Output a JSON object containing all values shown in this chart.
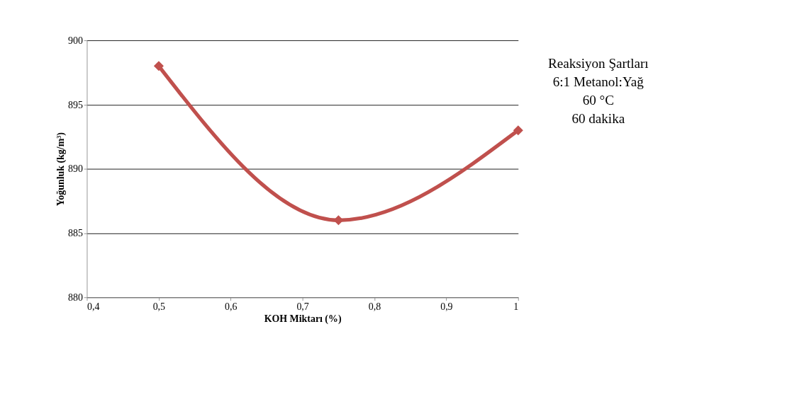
{
  "chart_data": {
    "type": "line",
    "xlabel": "KOH Miktarı (%)",
    "ylabel": "Yoğunluk (kg/m³)",
    "x": [
      0.5,
      0.75,
      1
    ],
    "series": [
      {
        "color": "#c0504d",
        "values": [
          898,
          886,
          893
        ]
      }
    ],
    "xlim": [
      0.4,
      1
    ],
    "xticks": [
      {
        "value": 0.4,
        "label": "0,4"
      },
      {
        "value": 0.5,
        "label": "0,5"
      },
      {
        "value": 0.6,
        "label": "0,6"
      },
      {
        "value": 0.7,
        "label": "0,7"
      },
      {
        "value": 0.8,
        "label": "0,8"
      },
      {
        "value": 0.9,
        "label": "0,9"
      },
      1
    ],
    "ylim": [
      880,
      900
    ],
    "yticks": [
      880,
      885,
      890,
      895,
      900
    ],
    "grid": "y",
    "marker": "diamond",
    "line_style": "solid",
    "annotations": [
      "Reaksiyon Şartları",
      "6:1 Metanol:Yağ",
      "60 °C",
      "60 dakika"
    ]
  }
}
